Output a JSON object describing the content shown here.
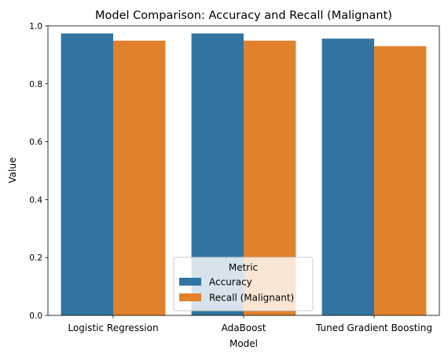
{
  "chart_data": {
    "type": "bar",
    "title": "Model Comparison: Accuracy and Recall (Malignant)",
    "xlabel": "Model",
    "ylabel": "Value",
    "ylim": [
      0,
      1.0
    ],
    "yticks": [
      0.0,
      0.2,
      0.4,
      0.6,
      0.8,
      1.0
    ],
    "ytick_labels": [
      "0.0",
      "0.2",
      "0.4",
      "0.6",
      "0.8",
      "1.0"
    ],
    "categories": [
      "Logistic Regression",
      "AdaBoost",
      "Tuned Gradient Boosting"
    ],
    "series": [
      {
        "name": "Accuracy",
        "color": "#3274a1",
        "values": [
          0.974,
          0.974,
          0.956
        ]
      },
      {
        "name": "Recall (Malignant)",
        "color": "#e1812c",
        "values": [
          0.949,
          0.949,
          0.93
        ]
      }
    ],
    "legend": {
      "title": "Metric",
      "position": "lower-center"
    },
    "grid": false
  }
}
